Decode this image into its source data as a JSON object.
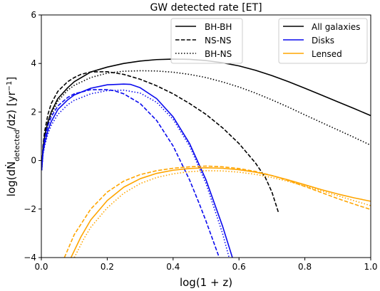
{
  "chart_data": {
    "type": "line",
    "title": "GW detected rate [ET]",
    "xlabel": "log(1 + z)",
    "ylabel": "log(dṄ",
    "ylabel_sub": "detected",
    "ylabel_tail": "/dz) [yr",
    "ylabel_sup": "−1",
    "ylabel_end": "]",
    "xlim": [
      0.0,
      1.0
    ],
    "ylim": [
      -4,
      6
    ],
    "xticks": [
      0.0,
      0.2,
      0.4,
      0.6,
      0.8,
      1.0
    ],
    "xtick_labels": [
      "0.0",
      "0.2",
      "0.4",
      "0.6",
      "0.8",
      "1.0"
    ],
    "yticks": [
      -4,
      -2,
      0,
      2,
      4,
      6
    ],
    "ytick_labels": [
      "−4",
      "−2",
      "0",
      "2",
      "4",
      "6"
    ],
    "grid": false,
    "legends": {
      "types": {
        "placement": "top-center",
        "entries": [
          {
            "label": "BH-BH",
            "dash": "solid"
          },
          {
            "label": "NS-NS",
            "dash": "dashed"
          },
          {
            "label": "BH-NS",
            "dash": "dotted"
          }
        ]
      },
      "populations": {
        "placement": "top-right",
        "entries": [
          {
            "label": "All galaxies",
            "color": "#000000"
          },
          {
            "label": "Disks",
            "color": "#0a0aee"
          },
          {
            "label": "Lensed",
            "color": "#ffa500"
          }
        ]
      }
    },
    "series": [
      {
        "type_key": "BH-BH",
        "population": "All galaxies",
        "color": "#000000",
        "dash": "solid",
        "x": [
          0.001,
          0.005,
          0.01,
          0.02,
          0.03,
          0.05,
          0.08,
          0.1,
          0.15,
          0.2,
          0.25,
          0.3,
          0.35,
          0.4,
          0.45,
          0.5,
          0.55,
          0.6,
          0.65,
          0.7,
          0.75,
          0.8,
          0.85,
          0.9,
          0.95,
          1.0
        ],
        "y": [
          -0.4,
          0.5,
          1.0,
          1.6,
          2.0,
          2.55,
          3.0,
          3.25,
          3.65,
          3.85,
          4.0,
          4.1,
          4.16,
          4.18,
          4.17,
          4.12,
          4.03,
          3.9,
          3.72,
          3.5,
          3.25,
          2.98,
          2.7,
          2.42,
          2.14,
          1.85
        ]
      },
      {
        "type_key": "NS-NS",
        "population": "All galaxies",
        "color": "#000000",
        "dash": "dashed",
        "x": [
          0.001,
          0.005,
          0.01,
          0.02,
          0.03,
          0.05,
          0.08,
          0.1,
          0.12,
          0.15,
          0.2,
          0.25,
          0.3,
          0.35,
          0.4,
          0.45,
          0.5,
          0.55,
          0.6,
          0.65,
          0.68,
          0.7,
          0.72
        ],
        "y": [
          -0.4,
          0.6,
          1.2,
          1.9,
          2.35,
          2.85,
          3.25,
          3.42,
          3.55,
          3.65,
          3.66,
          3.55,
          3.35,
          3.08,
          2.75,
          2.35,
          1.9,
          1.35,
          0.7,
          -0.1,
          -0.7,
          -1.3,
          -2.15
        ]
      },
      {
        "type_key": "BH-NS",
        "population": "All galaxies",
        "color": "#000000",
        "dash": "dotted",
        "x": [
          0.001,
          0.005,
          0.01,
          0.02,
          0.03,
          0.05,
          0.08,
          0.1,
          0.15,
          0.2,
          0.25,
          0.3,
          0.35,
          0.4,
          0.45,
          0.5,
          0.55,
          0.6,
          0.65,
          0.7,
          0.75,
          0.8,
          0.85,
          0.9,
          0.95,
          1.0
        ],
        "y": [
          -0.4,
          0.4,
          0.9,
          1.5,
          1.9,
          2.45,
          2.9,
          3.1,
          3.42,
          3.6,
          3.68,
          3.7,
          3.69,
          3.64,
          3.55,
          3.42,
          3.24,
          3.03,
          2.78,
          2.5,
          2.2,
          1.88,
          1.57,
          1.26,
          0.95,
          0.63
        ]
      },
      {
        "type_key": "BH-BH",
        "population": "Disks",
        "color": "#0a0aee",
        "dash": "solid",
        "x": [
          0.001,
          0.005,
          0.01,
          0.02,
          0.03,
          0.05,
          0.08,
          0.1,
          0.15,
          0.2,
          0.25,
          0.27,
          0.3,
          0.35,
          0.4,
          0.45,
          0.5,
          0.55,
          0.58
        ],
        "y": [
          -0.4,
          0.3,
          0.7,
          1.25,
          1.6,
          2.1,
          2.5,
          2.7,
          2.98,
          3.12,
          3.15,
          3.14,
          3.0,
          2.55,
          1.8,
          0.7,
          -0.8,
          -2.7,
          -4.0
        ]
      },
      {
        "type_key": "NS-NS",
        "population": "Disks",
        "color": "#0a0aee",
        "dash": "dashed",
        "x": [
          0.001,
          0.005,
          0.01,
          0.02,
          0.03,
          0.05,
          0.08,
          0.1,
          0.15,
          0.2,
          0.22,
          0.25,
          0.3,
          0.35,
          0.4,
          0.45,
          0.48,
          0.5,
          0.54
        ],
        "y": [
          -0.4,
          0.4,
          0.9,
          1.45,
          1.8,
          2.25,
          2.6,
          2.75,
          2.92,
          2.92,
          2.88,
          2.75,
          2.35,
          1.65,
          0.6,
          -0.8,
          -1.8,
          -2.5,
          -4.0
        ]
      },
      {
        "type_key": "BH-NS",
        "population": "Disks",
        "color": "#0a0aee",
        "dash": "dotted",
        "x": [
          0.001,
          0.005,
          0.01,
          0.02,
          0.03,
          0.05,
          0.08,
          0.1,
          0.15,
          0.2,
          0.25,
          0.3,
          0.35,
          0.4,
          0.45,
          0.5,
          0.55,
          0.57
        ],
        "y": [
          -0.4,
          0.25,
          0.6,
          1.1,
          1.45,
          1.9,
          2.3,
          2.48,
          2.75,
          2.88,
          2.9,
          2.78,
          2.4,
          1.7,
          0.6,
          -0.95,
          -3.0,
          -4.0
        ]
      },
      {
        "type_key": "BH-BH",
        "population": "Lensed",
        "color": "#ffa500",
        "dash": "solid",
        "x": [
          0.09,
          0.12,
          0.15,
          0.2,
          0.25,
          0.3,
          0.35,
          0.4,
          0.45,
          0.5,
          0.55,
          0.6,
          0.65,
          0.7,
          0.75,
          0.8,
          0.85,
          0.9,
          0.95,
          1.0
        ],
        "y": [
          -4.0,
          -3.15,
          -2.45,
          -1.65,
          -1.1,
          -0.75,
          -0.53,
          -0.4,
          -0.33,
          -0.3,
          -0.32,
          -0.38,
          -0.48,
          -0.62,
          -0.8,
          -1.0,
          -1.2,
          -1.38,
          -1.54,
          -1.68
        ]
      },
      {
        "type_key": "NS-NS",
        "population": "Lensed",
        "color": "#ffa500",
        "dash": "dashed",
        "x": [
          0.07,
          0.1,
          0.15,
          0.2,
          0.25,
          0.3,
          0.35,
          0.4,
          0.45,
          0.5,
          0.55,
          0.6,
          0.65,
          0.7,
          0.75,
          0.8,
          0.85,
          0.9,
          0.95,
          1.0
        ],
        "y": [
          -4.0,
          -3.05,
          -2.0,
          -1.3,
          -0.85,
          -0.58,
          -0.42,
          -0.32,
          -0.26,
          -0.23,
          -0.26,
          -0.33,
          -0.45,
          -0.62,
          -0.83,
          -1.07,
          -1.32,
          -1.57,
          -1.8,
          -2.02
        ]
      },
      {
        "type_key": "BH-NS",
        "population": "Lensed",
        "color": "#ffa500",
        "dash": "dotted",
        "x": [
          0.1,
          0.13,
          0.15,
          0.2,
          0.25,
          0.3,
          0.35,
          0.4,
          0.45,
          0.5,
          0.55,
          0.6,
          0.65,
          0.7,
          0.75,
          0.8,
          0.85,
          0.9,
          0.95,
          1.0
        ],
        "y": [
          -4.0,
          -3.2,
          -2.75,
          -1.95,
          -1.35,
          -0.95,
          -0.7,
          -0.55,
          -0.46,
          -0.42,
          -0.43,
          -0.48,
          -0.57,
          -0.7,
          -0.86,
          -1.05,
          -1.25,
          -1.45,
          -1.66,
          -1.86
        ]
      }
    ]
  }
}
